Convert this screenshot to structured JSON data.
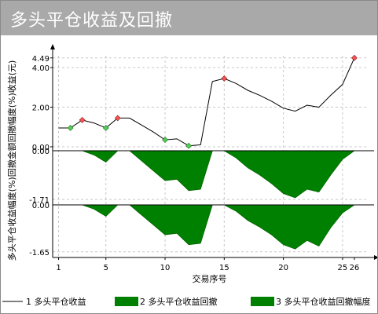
{
  "title": "多头平仓收益及回撤",
  "chart_data": {
    "type": "line+area",
    "xlabel": "交易序号",
    "ylabel": "多头平仓收益幅度(%)回撤金额回撤幅度(%)收益(元)",
    "ylabel_profit": "多头平仓收益(元)",
    "ylabel_drawdown": "回撤金额",
    "ylabel_ratio": "回撤幅度(%)",
    "x_ticks": [
      1,
      5,
      10,
      15,
      20,
      25,
      26
    ],
    "profit_ticks": [
      "4.49",
      "4.00",
      "2.00",
      "0.00"
    ],
    "drawdown_ticks": [
      "0.00",
      "-1.71"
    ],
    "ratio_ticks": [
      "0.00",
      "-1.65"
    ],
    "legend": [
      {
        "label": "1 多头平仓收益",
        "type": "line",
        "color": "#000000"
      },
      {
        "label": "2 多头平仓收益回撤",
        "type": "area",
        "color": "#008000"
      },
      {
        "label": "3 多头平仓收益回撤幅度",
        "type": "area",
        "color": "#008000"
      }
    ],
    "x": [
      1,
      2,
      3,
      4,
      5,
      6,
      7,
      8,
      9,
      10,
      11,
      12,
      13,
      14,
      15,
      16,
      17,
      18,
      19,
      20,
      21,
      22,
      23,
      24,
      25,
      26
    ],
    "profit": [
      0.95,
      0.95,
      1.35,
      1.2,
      0.95,
      1.45,
      1.45,
      1.1,
      0.75,
      0.35,
      0.4,
      0.05,
      0.1,
      3.3,
      3.45,
      3.2,
      2.85,
      2.6,
      2.3,
      1.95,
      1.8,
      2.1,
      2.0,
      2.6,
      3.15,
      4.49
    ],
    "drawdown": [
      0,
      0,
      0,
      -0.15,
      -0.4,
      0,
      0,
      -0.35,
      -0.7,
      -1.05,
      -1.0,
      -1.4,
      -1.35,
      0,
      0,
      -0.25,
      -0.6,
      -0.85,
      -1.15,
      -1.5,
      -1.65,
      -1.35,
      -1.45,
      -0.85,
      -0.3,
      0
    ],
    "drawdown_ratio": [
      0,
      0,
      0,
      -0.15,
      -0.4,
      0,
      0,
      -0.35,
      -0.7,
      -1.05,
      -1.0,
      -1.4,
      -1.35,
      0,
      0,
      -0.22,
      -0.55,
      -0.78,
      -1.05,
      -1.4,
      -1.55,
      -1.25,
      -1.45,
      -0.8,
      -0.28,
      0
    ],
    "new_high_markers": [
      3,
      6,
      15,
      26
    ],
    "new_low_markers": [
      2,
      5,
      10,
      12
    ],
    "profit_ylim": [
      -0.2,
      4.6
    ],
    "drawdown_ylim": [
      -1.9,
      0.0
    ],
    "ratio_ylim": [
      -1.85,
      0.0
    ],
    "grid": true
  }
}
